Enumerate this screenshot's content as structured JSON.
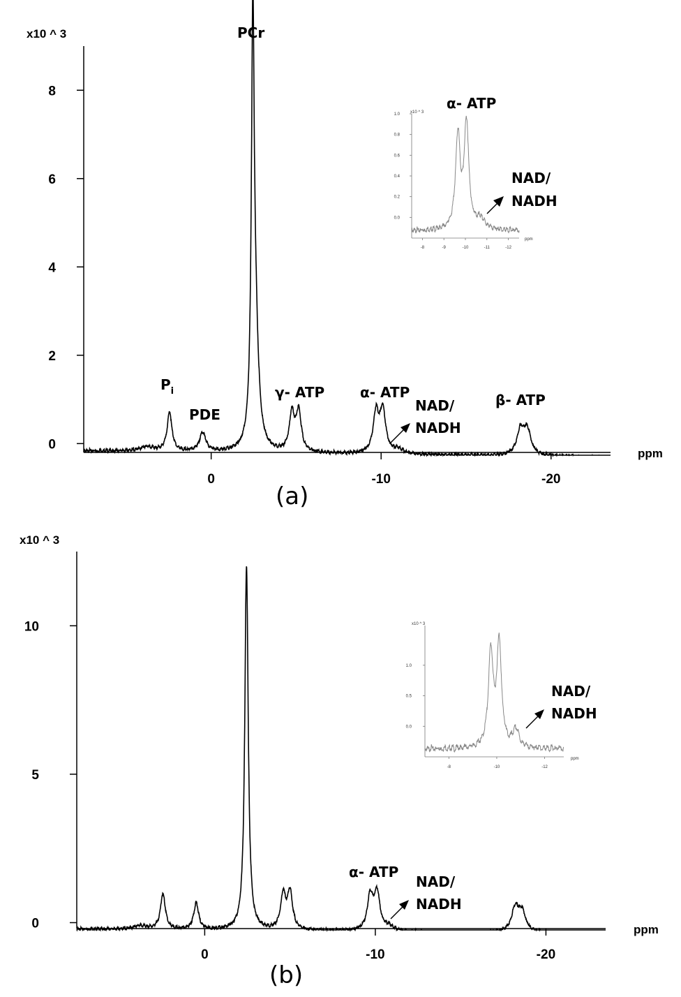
{
  "chart_data": [
    {
      "type": "line",
      "panel_label": "(a)",
      "y_multiplier_label": "x10 ^ 3",
      "xlabel": "ppm",
      "xlim": [
        7.5,
        -23.5
      ],
      "ylim": [
        -0.2,
        9
      ],
      "x_ticks": [
        0,
        -10,
        -20
      ],
      "x_tick_labels": [
        "0",
        "-10",
        "-20"
      ],
      "y_ticks": [
        0,
        2,
        4,
        6,
        8
      ],
      "y_tick_labels": [
        "0",
        "2",
        "4",
        "6",
        "8"
      ],
      "baseline": -0.15,
      "peaks": [
        {
          "center": 3.8,
          "height": 0.1,
          "width": 0.5
        },
        {
          "center": 2.45,
          "height": 0.88,
          "width": 0.17
        },
        {
          "center": 0.5,
          "height": 0.43,
          "width": 0.22
        },
        {
          "center": -2.45,
          "height": 8.8,
          "width": 0.1
        },
        {
          "center": -2.6,
          "height": 2.5,
          "width": 0.22
        },
        {
          "center": -4.75,
          "height": 0.85,
          "width": 0.18
        },
        {
          "center": -5.15,
          "height": 0.9,
          "width": 0.18
        },
        {
          "center": -9.7,
          "height": 0.9,
          "width": 0.2
        },
        {
          "center": -10.1,
          "height": 0.95,
          "width": 0.2
        },
        {
          "center": -11.0,
          "height": 0.1,
          "width": 0.35
        },
        {
          "center": -18.2,
          "height": 0.55,
          "width": 0.25
        },
        {
          "center": -18.6,
          "height": 0.55,
          "width": 0.25
        }
      ],
      "annotations": [
        {
          "text": "PCr",
          "x": -2.45
        },
        {
          "text": "P",
          "sub": "i",
          "x": 2.45
        },
        {
          "text": "PDE",
          "x": 0.3
        },
        {
          "text": "γ- ATP",
          "x": -5.4
        },
        {
          "text": "α- ATP",
          "x": -10.5
        },
        {
          "text": "NAD/",
          "line2": "NADH",
          "x": -13.8
        },
        {
          "text": "β- ATP",
          "x": -18.2
        }
      ],
      "inset": {
        "y_multiplier_label": "x10 ^ 3",
        "xlabel": "ppm",
        "xlim": [
          -7.5,
          -12.5
        ],
        "ylim": [
          -0.2,
          1.0
        ],
        "x_ticks": [
          -8,
          -9,
          -10,
          -11,
          -12
        ],
        "x_tick_labels": [
          "-8",
          "-9",
          "-10",
          "-11",
          "-12"
        ],
        "y_ticks": [
          0.0,
          0.2,
          0.4,
          0.6,
          0.8,
          1.0
        ],
        "y_tick_labels": [
          "0.0",
          "0.2",
          "0.4",
          "0.6",
          "0.8",
          "1.0"
        ],
        "peaks": [
          {
            "center": -9.65,
            "height": 0.9,
            "width": 0.13
          },
          {
            "center": -10.05,
            "height": 1.02,
            "width": 0.13
          },
          {
            "center": -10.7,
            "height": 0.1,
            "width": 0.25
          }
        ],
        "annotations": [
          {
            "text": "α- ATP"
          },
          {
            "text": "NAD/",
            "line2": "NADH"
          }
        ]
      }
    },
    {
      "type": "line",
      "panel_label": "(b)",
      "y_multiplier_label": "x10 ^ 3",
      "xlabel": "ppm",
      "xlim": [
        7.5,
        -23.5
      ],
      "ylim": [
        -0.2,
        12.5
      ],
      "x_ticks": [
        0,
        -10,
        -20
      ],
      "x_tick_labels": [
        "0",
        "-10",
        "-20"
      ],
      "y_ticks": [
        0,
        5,
        10
      ],
      "y_tick_labels": [
        "0",
        "5",
        "10"
      ],
      "baseline": -0.2,
      "peaks": [
        {
          "center": 3.8,
          "height": 0.12,
          "width": 0.5
        },
        {
          "center": 2.45,
          "height": 1.2,
          "width": 0.17
        },
        {
          "center": 0.5,
          "height": 0.9,
          "width": 0.17
        },
        {
          "center": -2.45,
          "height": 12.3,
          "width": 0.12
        },
        {
          "center": -4.6,
          "height": 1.15,
          "width": 0.18
        },
        {
          "center": -5.0,
          "height": 1.25,
          "width": 0.18
        },
        {
          "center": -9.7,
          "height": 1.15,
          "width": 0.2
        },
        {
          "center": -10.1,
          "height": 1.25,
          "width": 0.2
        },
        {
          "center": -10.8,
          "height": 0.15,
          "width": 0.3
        },
        {
          "center": -18.2,
          "height": 0.8,
          "width": 0.25
        },
        {
          "center": -18.6,
          "height": 0.65,
          "width": 0.25
        }
      ],
      "annotations": [
        {
          "text": "α- ATP",
          "x": -10.0
        },
        {
          "text": "NAD/",
          "line2": "NADH",
          "x": -13.3
        }
      ],
      "inset": {
        "y_multiplier_label": "x10 ^ 3",
        "xlabel": "ppm",
        "xlim": [
          -7.0,
          -12.8
        ],
        "ylim": [
          -0.5,
          1.65
        ],
        "x_ticks": [
          -8,
          -10,
          -12
        ],
        "x_tick_labels": [
          "-8",
          "-10",
          "-12"
        ],
        "y_ticks": [
          0.0,
          0.5,
          1.0
        ],
        "y_tick_labels": [
          "0.0",
          "0.5",
          "1.0"
        ],
        "peaks": [
          {
            "center": -9.75,
            "height": 1.55,
            "width": 0.12
          },
          {
            "center": -10.1,
            "height": 1.7,
            "width": 0.12
          },
          {
            "center": -10.8,
            "height": 0.3,
            "width": 0.15
          }
        ],
        "annotations": [
          {
            "text": "NAD/",
            "line2": "NADH"
          }
        ]
      }
    }
  ]
}
